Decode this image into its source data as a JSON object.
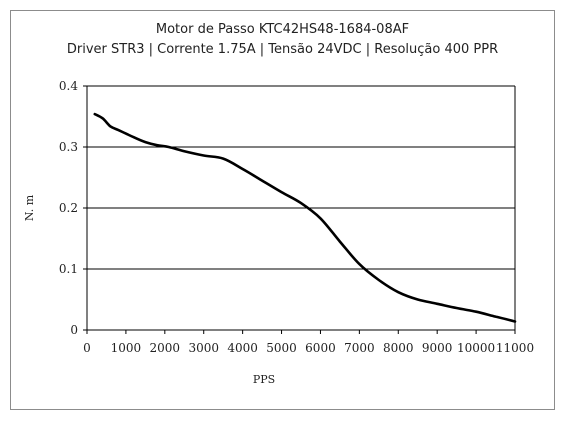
{
  "chart_data": {
    "type": "line",
    "title": "Motor de Passo KTC42HS48-1684-08AF",
    "subtitle": "Driver STR3 | Corrente 1.75A | Tensão 24VDC | Resolução 400 PPR",
    "xlabel": "PPS",
    "ylabel": "N. m",
    "xlim": [
      0,
      11000
    ],
    "ylim": [
      0,
      0.4
    ],
    "xticks": [
      "0",
      "1000",
      "2000",
      "3000",
      "4000",
      "5000",
      "6000",
      "7000",
      "8000",
      "9000",
      "10000",
      "11000"
    ],
    "yticks": [
      "0",
      "0.1",
      "0.2",
      "0.3",
      "0.4"
    ],
    "grid": "horizontal",
    "line_color": "#000000",
    "series": [
      {
        "x": [
          200,
          400,
          600,
          800,
          1000,
          1200,
          1500,
          1800,
          2100,
          2500,
          3000,
          3500,
          4000,
          4500,
          5000,
          5500,
          6000,
          6500,
          7000,
          7500,
          8000,
          8500,
          9000,
          9500,
          10000,
          10500,
          11000
        ],
        "values": [
          0.354,
          0.347,
          0.334,
          0.328,
          0.322,
          0.316,
          0.308,
          0.303,
          0.3,
          0.293,
          0.286,
          0.281,
          0.264,
          0.245,
          0.226,
          0.208,
          0.183,
          0.145,
          0.108,
          0.082,
          0.062,
          0.05,
          0.043,
          0.036,
          0.03,
          0.022,
          0.014
        ]
      }
    ]
  }
}
